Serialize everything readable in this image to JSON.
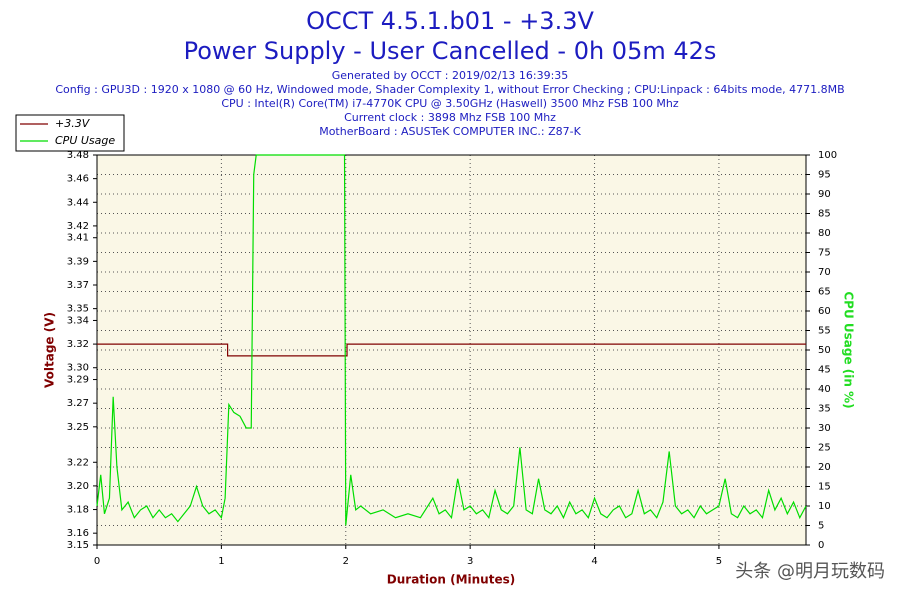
{
  "chart_data": {
    "type": "line",
    "title": "OCCT 4.5.1.b01 - +3.3V",
    "subtitle": "Power Supply - User Cancelled - 0h 05m 42s",
    "info": [
      "Generated by OCCT : 2019/02/13 16:39:35",
      "Config : GPU3D : 1920 x 1080 @ 60 Hz, Windowed mode, Shader Complexity 1, without Error Checking ; CPU:Linpack : 64bits mode, 4771.8MB",
      "CPU : Intel(R) Core(TM) i7-4770K CPU @ 3.50GHz (Haswell) 3500 Mhz FSB 100 Mhz",
      "Current clock : 3898 Mhz FSB 100 Mhz",
      "MotherBoard : ASUSTeK COMPUTER INC.: Z87-K"
    ],
    "xlabel": "Duration (Minutes)",
    "ylabel": "Voltage (V)",
    "y2label": "CPU Usage (in %)",
    "watermark": "头条 @明月玩数码",
    "xlim": [
      0,
      5.7
    ],
    "xticks": [
      0,
      1,
      2,
      3,
      4,
      5
    ],
    "ylim": [
      3.15,
      3.48
    ],
    "yticks": [
      3.15,
      3.16,
      3.18,
      {
        "value": 3.2,
        "label": "3.20"
      },
      3.22,
      3.25,
      3.27,
      3.29,
      {
        "value": 3.3,
        "label": "3.30"
      },
      3.32,
      3.34,
      3.35,
      3.37,
      3.39,
      3.41,
      3.42,
      3.44,
      3.46,
      3.48
    ],
    "y2lim": [
      0,
      100
    ],
    "y2ticks": [
      0,
      5,
      10,
      15,
      20,
      25,
      30,
      35,
      40,
      45,
      50,
      55,
      60,
      65,
      70,
      75,
      80,
      85,
      90,
      95,
      100
    ],
    "grid": true,
    "legend": "top-left",
    "series": [
      {
        "name": "+3.3V",
        "color": "#800000",
        "x": [
          0,
          1.05,
          1.05,
          2.01,
          2.01,
          5.7
        ],
        "values": [
          3.32,
          3.32,
          3.31,
          3.31,
          3.32,
          3.32
        ]
      },
      {
        "name": "CPU Usage",
        "color": "#00dd00",
        "axis": "y2",
        "x": [
          0,
          0.03,
          0.06,
          0.1,
          0.13,
          0.16,
          0.2,
          0.25,
          0.3,
          0.35,
          0.4,
          0.45,
          0.5,
          0.55,
          0.6,
          0.65,
          0.7,
          0.75,
          0.8,
          0.85,
          0.9,
          0.95,
          1.0,
          1.03,
          1.06,
          1.1,
          1.15,
          1.2,
          1.24,
          1.26,
          1.28,
          1.5,
          1.7,
          1.99,
          2.0,
          2.04,
          2.08,
          2.12,
          2.2,
          2.3,
          2.4,
          2.5,
          2.6,
          2.7,
          2.75,
          2.8,
          2.85,
          2.9,
          2.95,
          3.0,
          3.05,
          3.1,
          3.15,
          3.2,
          3.25,
          3.3,
          3.35,
          3.4,
          3.45,
          3.5,
          3.55,
          3.6,
          3.65,
          3.7,
          3.75,
          3.8,
          3.85,
          3.9,
          3.95,
          4.0,
          4.05,
          4.1,
          4.15,
          4.2,
          4.25,
          4.3,
          4.35,
          4.4,
          4.45,
          4.5,
          4.55,
          4.6,
          4.65,
          4.7,
          4.75,
          4.8,
          4.85,
          4.9,
          4.95,
          5.0,
          5.05,
          5.1,
          5.15,
          5.2,
          5.25,
          5.3,
          5.35,
          5.4,
          5.45,
          5.5,
          5.55,
          5.6,
          5.65,
          5.7
        ],
        "values": [
          10,
          18,
          8,
          12,
          38,
          20,
          9,
          11,
          7,
          9,
          10,
          7,
          9,
          7,
          8,
          6,
          8,
          10,
          15,
          10,
          8,
          9,
          7,
          12,
          36,
          34,
          33,
          30,
          30,
          95,
          100,
          100,
          100,
          100,
          5,
          18,
          9,
          10,
          8,
          9,
          7,
          8,
          7,
          12,
          8,
          9,
          7,
          17,
          9,
          10,
          8,
          9,
          7,
          14,
          9,
          8,
          10,
          25,
          9,
          8,
          17,
          9,
          8,
          10,
          7,
          11,
          8,
          9,
          7,
          12,
          8,
          7,
          9,
          10,
          7,
          8,
          14,
          8,
          9,
          7,
          11,
          24,
          10,
          8,
          9,
          7,
          10,
          8,
          9,
          10,
          17,
          8,
          7,
          10,
          8,
          9,
          7,
          14,
          9,
          12,
          8,
          11,
          7,
          10
        ]
      }
    ]
  }
}
